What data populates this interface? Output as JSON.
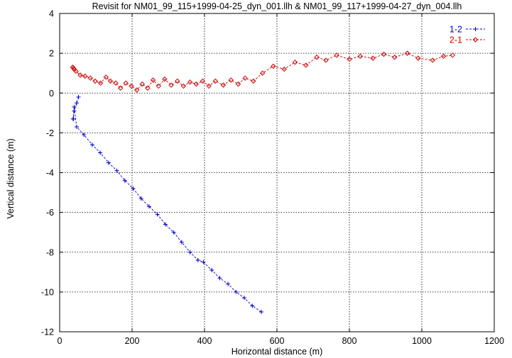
{
  "chart_data": {
    "type": "line",
    "title": "Revisit for NM01_99_115+1999-04-25_dyn_001.llh & NM01_99_117+1999-04-27_dyn_004.llh",
    "xlabel": "Horizontal distance (m)",
    "ylabel": "Vertical distance (m)",
    "xlim": [
      0,
      1200
    ],
    "ylim": [
      -12,
      4
    ],
    "xticks": [
      "0",
      "200",
      "400",
      "600",
      "800",
      "1000",
      "1200"
    ],
    "yticks": [
      "-12",
      "-10",
      "-8",
      "-6",
      "-4",
      "-2",
      "0",
      "2",
      "4"
    ],
    "grid": true,
    "legend_position": "top-right",
    "series": [
      {
        "name": "1-2",
        "color": "#0000cc",
        "marker": "plus",
        "x": [
          52,
          47,
          40,
          37,
          38,
          40,
          47,
          67,
          90,
          112,
          135,
          158,
          180,
          203,
          225,
          247,
          270,
          292,
          315,
          337,
          360,
          382,
          397,
          420,
          442,
          465,
          487,
          510,
          532,
          557
        ],
        "y": [
          -0.2,
          -0.5,
          -0.9,
          -1.3,
          -1.3,
          -0.7,
          -1.7,
          -2.1,
          -2.6,
          -3.0,
          -3.5,
          -3.9,
          -4.4,
          -4.8,
          -5.3,
          -5.7,
          -6.1,
          -6.6,
          -7.0,
          -7.5,
          -8.0,
          -8.4,
          -8.5,
          -8.9,
          -9.3,
          -9.6,
          -10.0,
          -10.3,
          -10.7,
          -11.0
        ]
      },
      {
        "name": "2-1",
        "color": "#cc0000",
        "marker": "diamond",
        "x": [
          36,
          38,
          40,
          45,
          57,
          70,
          85,
          98,
          113,
          128,
          140,
          155,
          168,
          183,
          198,
          213,
          228,
          243,
          258,
          273,
          290,
          308,
          325,
          342,
          360,
          377,
          395,
          412,
          430,
          452,
          473,
          493,
          512,
          535,
          560,
          590,
          620,
          650,
          680,
          710,
          735,
          765,
          800,
          830,
          865,
          895,
          925,
          960,
          990,
          1030,
          1060,
          1085
        ],
        "y": [
          1.3,
          1.25,
          1.2,
          1.1,
          0.9,
          0.85,
          0.75,
          0.6,
          0.5,
          0.8,
          0.6,
          0.5,
          0.25,
          0.5,
          0.35,
          0.15,
          0.45,
          0.25,
          0.65,
          0.35,
          0.7,
          0.4,
          0.6,
          0.35,
          0.55,
          0.45,
          0.6,
          0.35,
          0.6,
          0.4,
          0.65,
          0.45,
          0.75,
          0.6,
          1.0,
          1.35,
          1.2,
          1.55,
          1.4,
          1.8,
          1.65,
          1.9,
          1.7,
          1.85,
          1.75,
          1.95,
          1.8,
          2.0,
          1.75,
          1.65,
          1.85,
          1.9
        ]
      }
    ]
  }
}
